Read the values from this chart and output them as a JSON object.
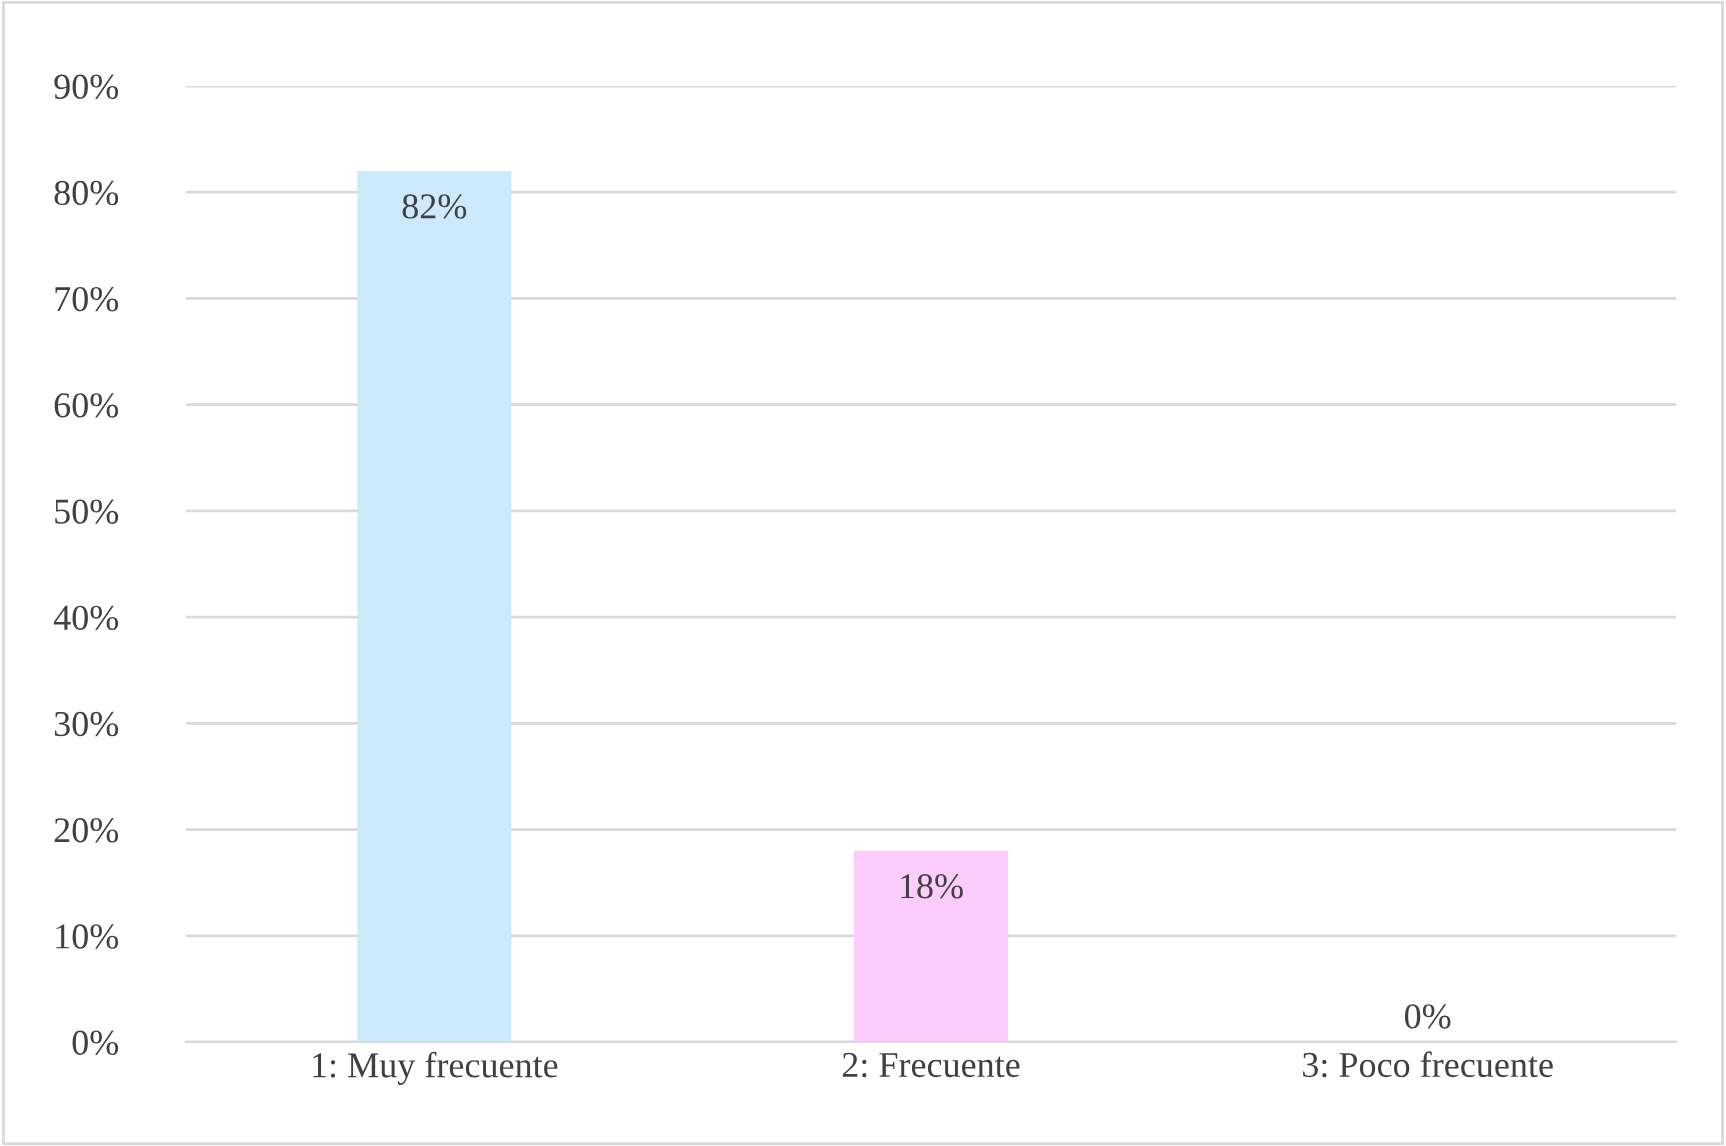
{
  "chart_data": {
    "type": "bar",
    "categories": [
      "1: Muy frecuente",
      "2: Frecuente",
      "3: Poco frecuente"
    ],
    "values": [
      82,
      18,
      0
    ],
    "colors": [
      "#cdeafc",
      "#fccdfc",
      "#d9d9d9"
    ],
    "value_labels": [
      "82%",
      "18%",
      "0%"
    ],
    "ylim": [
      0,
      90
    ],
    "yticks": [
      {
        "value": 0,
        "label": "0%"
      },
      {
        "value": 10,
        "label": "10%"
      },
      {
        "value": 20,
        "label": "20%"
      },
      {
        "value": 30,
        "label": "30%"
      },
      {
        "value": 40,
        "label": "40%"
      },
      {
        "value": 50,
        "label": "50%"
      },
      {
        "value": 60,
        "label": "60%"
      },
      {
        "value": 70,
        "label": "70%"
      },
      {
        "value": 80,
        "label": "80%"
      },
      {
        "value": 90,
        "label": "90%"
      }
    ],
    "grid": "y",
    "legend": false
  }
}
